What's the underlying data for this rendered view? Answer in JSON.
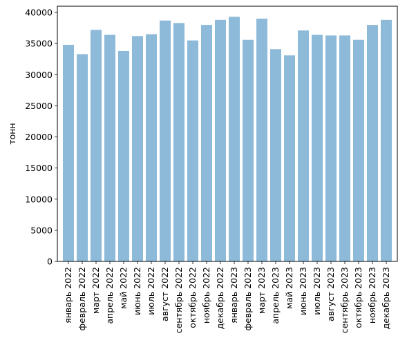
{
  "chart_data": {
    "type": "bar",
    "title": "",
    "xlabel": "",
    "ylabel": "тонн",
    "ylim": [
      0,
      41000
    ],
    "yticks": [
      0,
      5000,
      10000,
      15000,
      20000,
      25000,
      30000,
      35000,
      40000
    ],
    "grid": false,
    "bar_color": "#8dbad9",
    "categories": [
      "январь 2022",
      "февраль 2022",
      "март 2022",
      "апрель 2022",
      "май 2022",
      "июнь 2022",
      "июль 2022",
      "август 2022",
      "сентябрь 2022",
      "октябрь 2022",
      "ноябрь 2022",
      "декабрь 2022",
      "январь 2023",
      "февраль 2023",
      "март 2023",
      "апрель 2023",
      "май 2023",
      "июнь 2023",
      "июль 2023",
      "август 2023",
      "сентябрь 2023",
      "октябрь 2023",
      "ноябрь 2023",
      "декабрь 2023"
    ],
    "values": [
      34800,
      33300,
      37200,
      36400,
      33800,
      36200,
      36500,
      38700,
      38300,
      35500,
      38000,
      38800,
      39300,
      35600,
      39000,
      34100,
      33100,
      37100,
      36400,
      36300,
      36300,
      35600,
      38000,
      38800
    ]
  }
}
